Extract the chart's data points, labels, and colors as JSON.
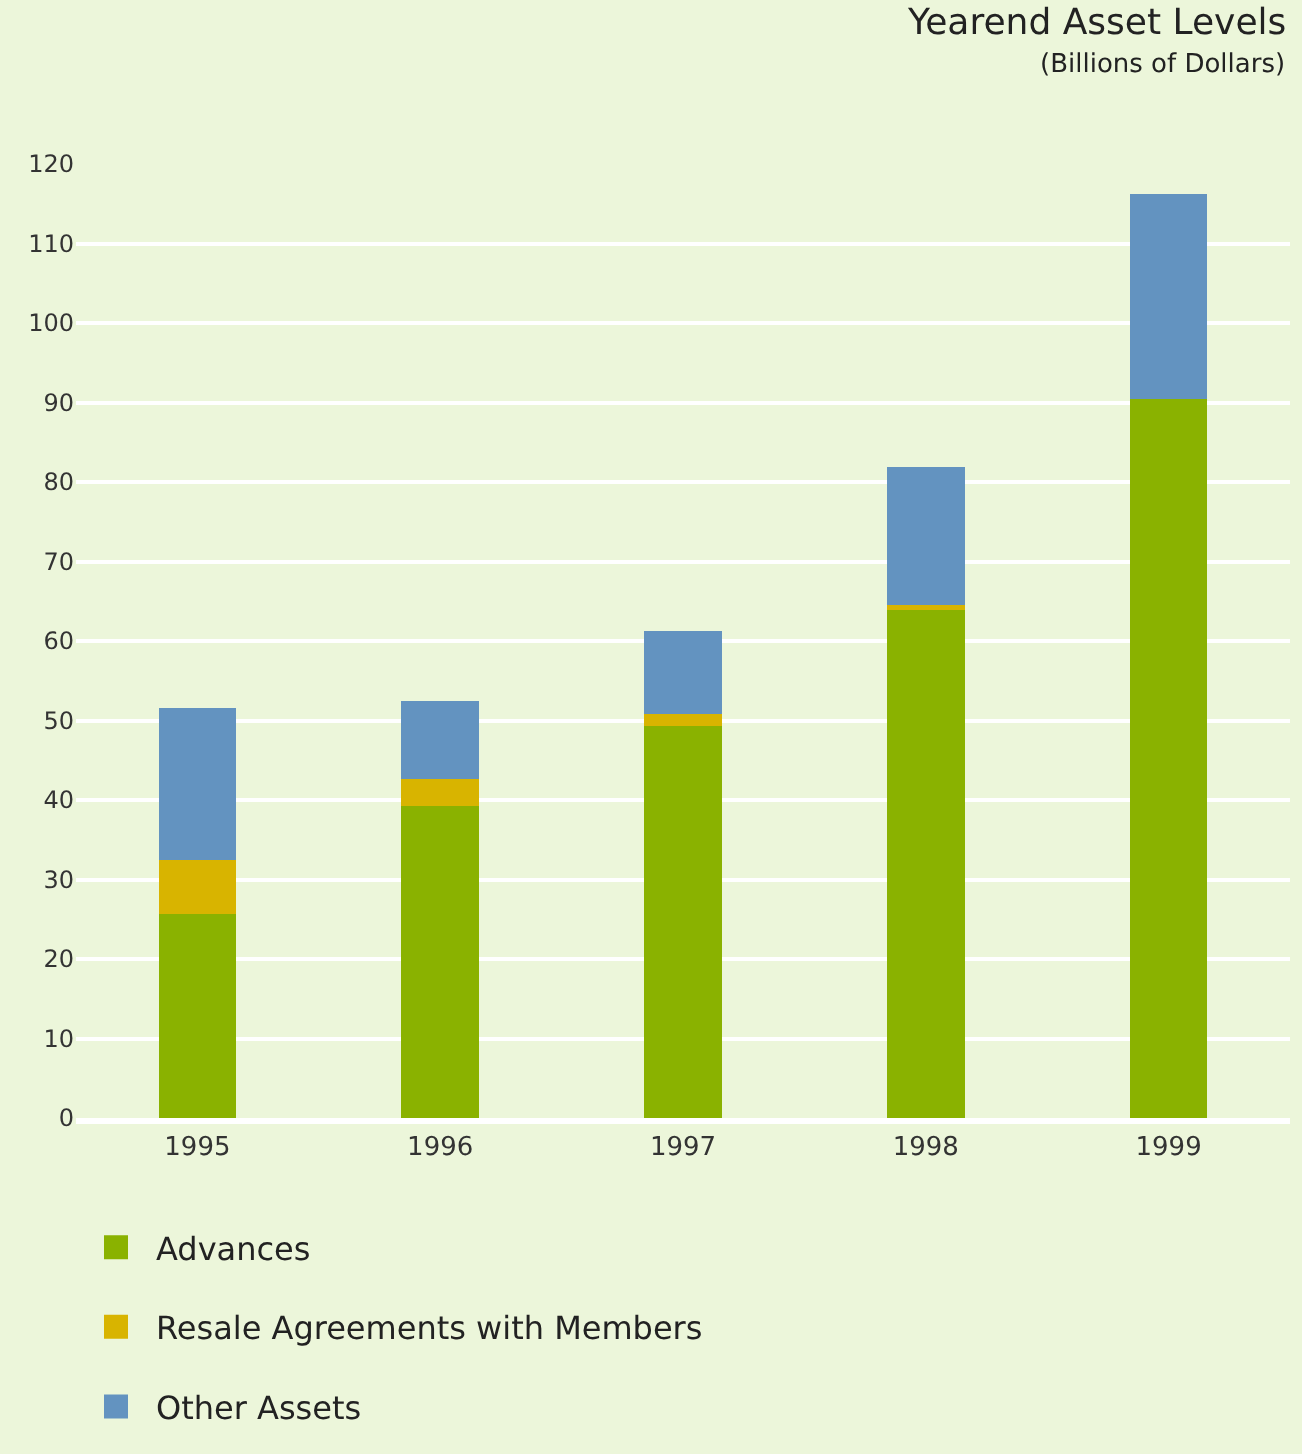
{
  "chart_data": {
    "type": "bar",
    "title": "Yearend Asset Levels",
    "subtitle": "(Billions of Dollars)",
    "categories": [
      "1995",
      "1996",
      "1997",
      "1998",
      "1999"
    ],
    "stacked": true,
    "series": [
      {
        "name": "Advances",
        "color": "#8ab200",
        "values": [
          25.7,
          39.3,
          49.3,
          64.1,
          90.4
        ]
      },
      {
        "name": "Resale Agreements with Members",
        "color": "#d8b400",
        "values": [
          6.7,
          3.4,
          1.5,
          0.4,
          0
        ]
      },
      {
        "name": "Other Assets",
        "color": "#6393c0",
        "values": [
          19.2,
          9.8,
          10.4,
          17.4,
          25.8
        ]
      }
    ],
    "ylim": [
      0,
      120
    ],
    "yticks": [
      0,
      10,
      20,
      30,
      40,
      50,
      60,
      70,
      80,
      90,
      100,
      110,
      120
    ],
    "grid": "y",
    "legend": "bottom left"
  }
}
